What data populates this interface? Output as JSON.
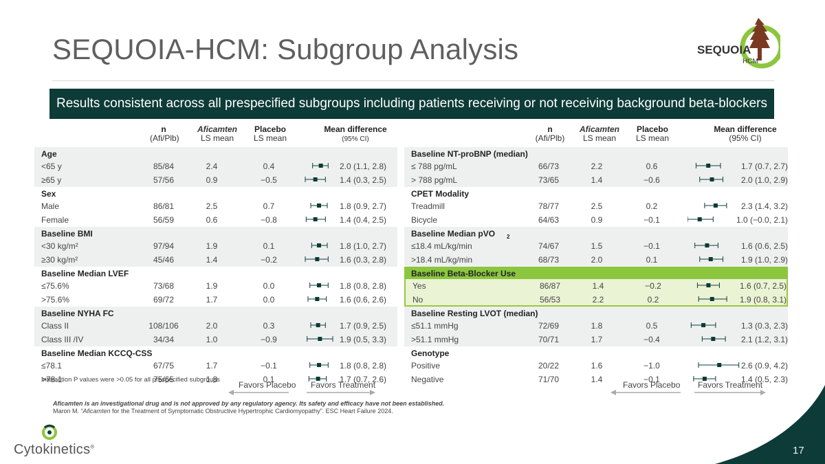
{
  "title": "SEQUOIA-HCM: Subgroup Analysis",
  "logo": {
    "brand": "SEQUOIA",
    "sub": "HCM"
  },
  "banner": "Results consistent across all prespecified subgroups including patients receiving or not receiving background beta-blockers",
  "headers": {
    "n": "n",
    "n_sub": "(Afi/Plb)",
    "afi": "Aficamten",
    "afi_sub": "LS mean",
    "plb": "Placebo",
    "plb_sub": "LS mean",
    "md": "Mean difference",
    "md_sub": "(95% CI)"
  },
  "left": {
    "groups": [
      {
        "title": "Age",
        "rows": [
          {
            "label": "<65 y",
            "n": "85/84",
            "afi": "2.4",
            "plb": "0.4",
            "md": "2.0 (1.1, 2.8)",
            "est": 2.0,
            "lo": 1.1,
            "hi": 2.8
          },
          {
            "label": "≥65 y",
            "n": "57/56",
            "afi": "0.9",
            "plb": "−0.5",
            "md": "1.4 (0.3, 2.5)",
            "est": 1.4,
            "lo": 0.3,
            "hi": 2.5
          }
        ]
      },
      {
        "title": "Sex",
        "rows": [
          {
            "label": "Male",
            "n": "86/81",
            "afi": "2.5",
            "plb": "0.7",
            "md": "1.8 (0.9, 2.7)",
            "est": 1.8,
            "lo": 0.9,
            "hi": 2.7
          },
          {
            "label": "Female",
            "n": "56/59",
            "afi": "0.6",
            "plb": "−0.8",
            "md": "1.4 (0.4, 2.5)",
            "est": 1.4,
            "lo": 0.4,
            "hi": 2.5
          }
        ]
      },
      {
        "title": "Baseline BMI",
        "rows": [
          {
            "label": "<30 kg/m²",
            "n": "97/94",
            "afi": "1.9",
            "plb": "0.1",
            "md": "1.8 (1.0, 2.7)",
            "est": 1.8,
            "lo": 1.0,
            "hi": 2.7
          },
          {
            "label": "≥30 kg/m²",
            "n": "45/46",
            "afi": "1.4",
            "plb": "−0.2",
            "md": "1.6 (0.3, 2.8)",
            "est": 1.6,
            "lo": 0.3,
            "hi": 2.8
          }
        ]
      },
      {
        "title": "Baseline Median LVEF",
        "rows": [
          {
            "label": "≤75.6%",
            "n": "73/68",
            "afi": "1.9",
            "plb": "0.0",
            "md": "1.8 (0.8, 2.8)",
            "est": 1.8,
            "lo": 0.8,
            "hi": 2.8
          },
          {
            "label": ">75.6%",
            "n": "69/72",
            "afi": "1.7",
            "plb": "0.0",
            "md": "1.6 (0.6, 2.6)",
            "est": 1.6,
            "lo": 0.6,
            "hi": 2.6
          }
        ]
      },
      {
        "title": "Baseline NYHA FC",
        "rows": [
          {
            "label": "Class II",
            "n": "108/106",
            "afi": "2.0",
            "plb": "0.3",
            "md": "1.7 (0.9, 2.5)",
            "est": 1.7,
            "lo": 0.9,
            "hi": 2.5
          },
          {
            "label": "Class III /IV",
            "n": "34/34",
            "afi": "1.0",
            "plb": "−0.9",
            "md": "1.9 (0.5, 3.3)",
            "est": 1.9,
            "lo": 0.5,
            "hi": 3.3
          }
        ]
      },
      {
        "title": "Baseline Median KCCQ-CSS",
        "rows": [
          {
            "label": "≤78.1",
            "n": "67/75",
            "afi": "1.7",
            "plb": "−0.1",
            "md": "1.8 (0.8, 2.8)",
            "est": 1.8,
            "lo": 0.8,
            "hi": 2.8
          },
          {
            "label": ">78.1",
            "n": "75/65",
            "afi": "1.8",
            "plb": "0.1",
            "md": "1.7 (0.7, 2.6)",
            "est": 1.7,
            "lo": 0.7,
            "hi": 2.6
          }
        ]
      }
    ]
  },
  "right": {
    "groups": [
      {
        "title": "Baseline NT-proBNP (median)",
        "rows": [
          {
            "label": "≤ 788 pg/mL",
            "n": "66/73",
            "afi": "2.2",
            "plb": "0.6",
            "md": "1.7 (0.7, 2.7)",
            "est": 1.7,
            "lo": 0.7,
            "hi": 2.7
          },
          {
            "label": "> 788 pg/mL",
            "n": "73/65",
            "afi": "1.4",
            "plb": "−0.6",
            "md": "2.0 (1.0, 2.9)",
            "est": 2.0,
            "lo": 1.0,
            "hi": 2.9
          }
        ]
      },
      {
        "title": "CPET Modality",
        "rows": [
          {
            "label": "Treadmill",
            "n": "78/77",
            "afi": "2.5",
            "plb": "0.2",
            "md": "2.3 (1.4, 3.2)",
            "est": 2.3,
            "lo": 1.4,
            "hi": 3.2
          },
          {
            "label": "Bicycle",
            "n": "64/63",
            "afi": "0.9",
            "plb": "−0.1",
            "md": "1.0 (−0.0, 2.1)",
            "est": 1.0,
            "lo": 0.0,
            "hi": 2.1
          }
        ]
      },
      {
        "title": "Baseline Median pVO",
        "title_sub": "2",
        "rows": [
          {
            "label": "≤18.4 mL/kg/min",
            "n": "74/67",
            "afi": "1.5",
            "plb": "−0.1",
            "md": "1.6 (0.6, 2.5)",
            "est": 1.6,
            "lo": 0.6,
            "hi": 2.5
          },
          {
            "label": ">18.4 mL/kg/min",
            "n": "68/73",
            "afi": "2.0",
            "plb": "0.1",
            "md": "1.9 (1.0, 2.9)",
            "est": 1.9,
            "lo": 1.0,
            "hi": 2.9
          }
        ]
      },
      {
        "title": "Baseline Beta-Blocker Use",
        "highlight": true,
        "rows": [
          {
            "label": "Yes",
            "n": "86/87",
            "afi": "1.4",
            "plb": "−0.2",
            "md": "1.6 (0.7, 2.5)",
            "est": 1.6,
            "lo": 0.7,
            "hi": 2.5
          },
          {
            "label": "No",
            "n": "56/53",
            "afi": "2.2",
            "plb": "0.2",
            "md": "1.9 (0.8, 3.1)",
            "est": 1.9,
            "lo": 0.8,
            "hi": 3.1
          }
        ]
      },
      {
        "title": "Baseline Resting LVOT (median)",
        "rows": [
          {
            "label": "≤51.1 mmHg",
            "n": "72/69",
            "afi": "1.8",
            "plb": "0.5",
            "md": "1.3 (0.3, 2.3)",
            "est": 1.3,
            "lo": 0.3,
            "hi": 2.3
          },
          {
            "label": ">51.1 mmHg",
            "n": "70/71",
            "afi": "1.7",
            "plb": "−0.4",
            "md": "2.1 (1.2, 3.1)",
            "est": 2.1,
            "lo": 1.2,
            "hi": 3.1
          }
        ]
      },
      {
        "title": "Genotype",
        "rows": [
          {
            "label": "Positive",
            "n": "20/22",
            "afi": "1.6",
            "plb": "−1.0",
            "md": "2.6 (0.9, 4.2)",
            "est": 2.6,
            "lo": 0.9,
            "hi": 4.2
          },
          {
            "label": "Negative",
            "n": "71/70",
            "afi": "1.4",
            "plb": "−0.1",
            "md": "1.4 (0.5, 2.3)",
            "est": 1.4,
            "lo": 0.5,
            "hi": 2.3
          }
        ]
      }
    ]
  },
  "interaction_note": "Interaction P values were >0.05 for all prespecified subgroups",
  "favors_placebo": "Favors Placebo",
  "favors_treatment": "Favors Treatment",
  "disclaimer_1": "Aficamten is an investigational drug and is not approved by any regulatory agency. Its safety and efficacy have not been established.",
  "disclaimer_2a": "Maron M. “",
  "disclaimer_2b": "Aficamten",
  "disclaimer_2c": " for the Treatment of Symptomatic Obstructive Hypertrophic Cardiomyopathy”. ESC Heart Failure 2024.",
  "company": "Cytokinetics",
  "company_mark": "®",
  "page_number": "17",
  "colors": {
    "banner": "#0d3b37",
    "highlight": "#8cc63f",
    "marker": "#0d3b37"
  }
}
